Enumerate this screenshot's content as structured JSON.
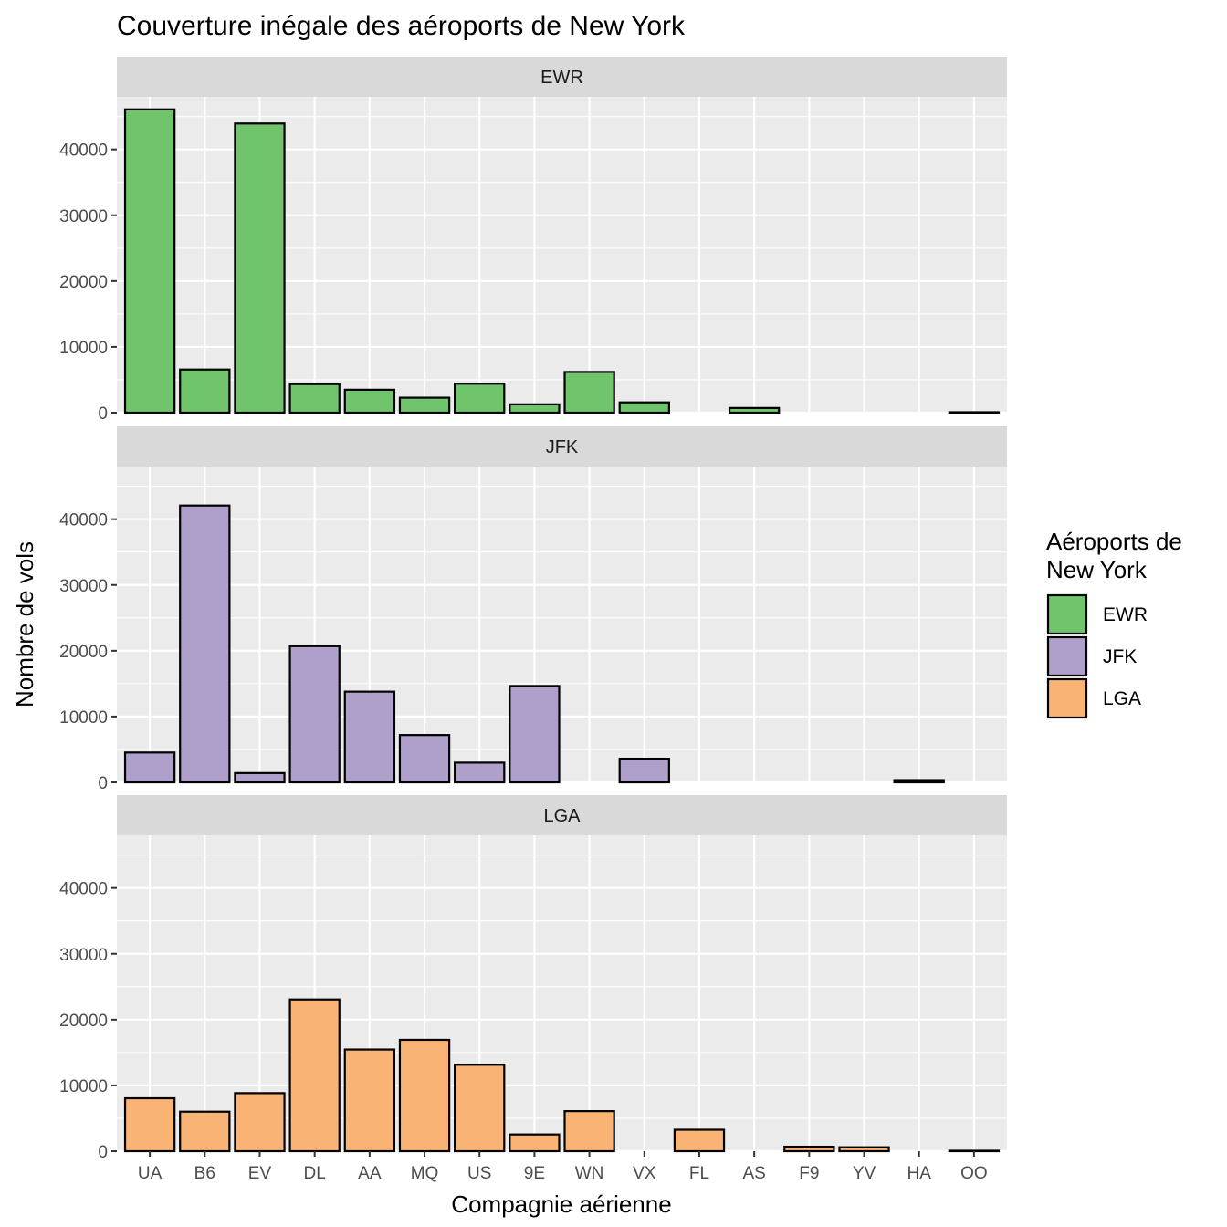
{
  "chart_data": {
    "type": "bar",
    "title": "Couverture inégale des aéroports de New York",
    "xlabel": "Compagnie aérienne",
    "ylabel": "Nombre de vols",
    "categories": [
      "UA",
      "B6",
      "EV",
      "DL",
      "AA",
      "MQ",
      "US",
      "9E",
      "WN",
      "VX",
      "FL",
      "AS",
      "F9",
      "YV",
      "HA",
      "OO"
    ],
    "ylim": [
      0,
      48000
    ],
    "yticks": [
      0,
      10000,
      20000,
      30000,
      40000
    ],
    "ytick_labels": [
      "0",
      "10000",
      "20000",
      "30000",
      "40000"
    ],
    "grid": true,
    "facets": [
      "EWR",
      "JFK",
      "LGA"
    ],
    "legend": {
      "title_lines": [
        "Aéroports de",
        "New York"
      ],
      "placement": "right"
    },
    "series": [
      {
        "name": "EWR",
        "color": "#70C46C",
        "values": [
          46087,
          6557,
          43939,
          4342,
          3487,
          2276,
          4405,
          1268,
          6188,
          1566,
          null,
          714,
          null,
          null,
          null,
          6
        ]
      },
      {
        "name": "JFK",
        "color": "#AF9FCB",
        "values": [
          4534,
          42076,
          1408,
          20701,
          13783,
          7193,
          2995,
          14651,
          null,
          3596,
          null,
          null,
          null,
          null,
          342,
          null
        ]
      },
      {
        "name": "LGA",
        "color": "#F9B475",
        "values": [
          8044,
          6002,
          8826,
          23067,
          15459,
          16928,
          13136,
          2541,
          6087,
          null,
          3260,
          null,
          685,
          601,
          null,
          26
        ]
      }
    ]
  }
}
